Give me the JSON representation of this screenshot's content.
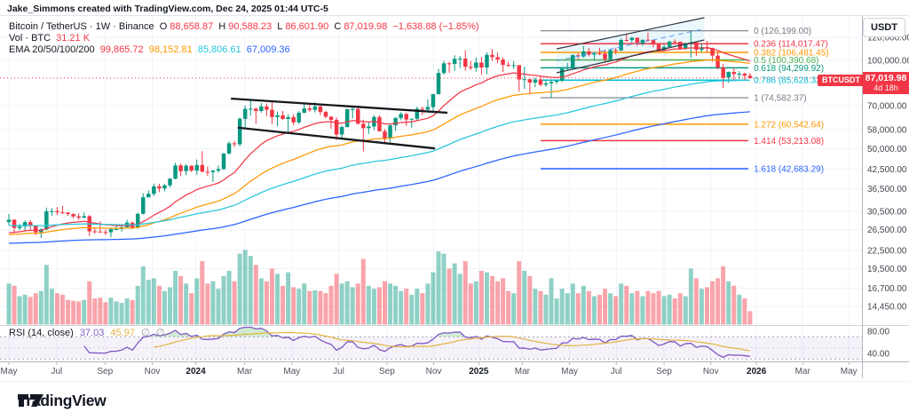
{
  "watermark": "Jake_Simmons created with TradingView.com, Dec 24, 2025 01:44 UTC-5",
  "colors": {
    "up": "#089981",
    "down": "#f23645",
    "ema": [
      "#f23645",
      "#ff9800",
      "#26c6da",
      "#2962ff"
    ],
    "rsi": "#7e57c2",
    "rsi_ma": "#e3b341",
    "grid": "#f0f3fa",
    "axis_text": "#42464e"
  },
  "legend": {
    "title": "Bitcoin / TetherUS · 1W · Binance",
    "ohlc": {
      "o_label": "O",
      "o": "88,658.87",
      "h_label": "H",
      "h": "90,588.23",
      "l_label": "L",
      "l": "86,601.90",
      "c_label": "C",
      "c": "87,019.98",
      "change": "−1,638.88 (−1.85%)"
    },
    "vol_label": "Vol · BTC",
    "vol_value": "31.21 K",
    "ema_label": "EMA 20/50/100/200",
    "ema_values": [
      "99,865.72",
      "98,152.81",
      "85,806.61",
      "67,009.36"
    ]
  },
  "rsi_pane": {
    "label": "RSI (14, close)",
    "value": "37.03",
    "ma_value": "45.97",
    "empty_icon": "∅",
    "levels": [
      70,
      50,
      30
    ]
  },
  "price_badge": {
    "symbol": "BTCUSDT",
    "price": "87,019.98",
    "countdown": "4d 18h",
    "value": 87019.98,
    "color": "#f23645"
  },
  "price_axis": {
    "currency": "USDT",
    "ticks": [
      {
        "label": "120,000.00",
        "price": 120000
      },
      {
        "label": "100,000.00",
        "price": 100000
      },
      {
        "label": "70,000.00",
        "price": 70000
      },
      {
        "label": "58,000.00",
        "price": 58000
      },
      {
        "label": "50,000.00",
        "price": 50000
      },
      {
        "label": "42,500.00",
        "price": 42500
      },
      {
        "label": "36,500.00",
        "price": 36500
      },
      {
        "label": "30,500.00",
        "price": 30500
      },
      {
        "label": "26,500.00",
        "price": 26500
      },
      {
        "label": "22,500.00",
        "price": 22500
      },
      {
        "label": "19,500.00",
        "price": 19500
      },
      {
        "label": "16,700.00",
        "price": 16700
      },
      {
        "label": "14,450.00",
        "price": 14450
      }
    ]
  },
  "rsi_axis": {
    "ticks": [
      {
        "label": "80.00",
        "value": 80
      },
      {
        "label": "40.00",
        "value": 40
      }
    ]
  },
  "time_axis": {
    "ticks": [
      {
        "label": "May",
        "week": 0
      },
      {
        "label": "Jul",
        "week": 8.9
      },
      {
        "label": "Sep",
        "week": 17.9
      },
      {
        "label": "Nov",
        "week": 26.7
      },
      {
        "label": "2024",
        "week": 34.8,
        "year": true
      },
      {
        "label": "Mar",
        "week": 43.9
      },
      {
        "label": "May",
        "week": 52.7
      },
      {
        "label": "Jul",
        "week": 61.4
      },
      {
        "label": "Sep",
        "week": 70.4
      },
      {
        "label": "Nov",
        "week": 79.1
      },
      {
        "label": "2025",
        "week": 87.5,
        "year": true
      },
      {
        "label": "Mar",
        "week": 95.6
      },
      {
        "label": "May",
        "week": 104.4
      },
      {
        "label": "Jul",
        "week": 113.1
      },
      {
        "label": "Sep",
        "week": 122
      },
      {
        "label": "Nov",
        "week": 130.7
      },
      {
        "label": "2026",
        "week": 139.2,
        "year": true
      },
      {
        "label": "Mar",
        "week": 147.8
      },
      {
        "label": "May",
        "week": 156.4
      }
    ]
  },
  "fib_retracement": {
    "week_start": 99,
    "week_end": 137.7,
    "levels": [
      {
        "level": "0",
        "price": 126199.0,
        "label": "0 (126,199.00)",
        "color": "#787b86"
      },
      {
        "level": "0.236",
        "price": 114017.47,
        "label": "0.236 (114,017.47)",
        "color": "#f23645"
      },
      {
        "level": "0.382",
        "price": 106481.45,
        "label": "0.382 (106,481.45)",
        "color": "#ff9800"
      },
      {
        "level": "0.5",
        "price": 100390.68,
        "label": "0.5 (100,390.68)",
        "color": "#4caf50"
      },
      {
        "level": "0.618",
        "price": 94299.92,
        "label": "0.618 (94,299.92)",
        "color": "#089981"
      },
      {
        "level": "0.786",
        "price": 85628.33,
        "label": "0.786 (85,628.33)",
        "color": "#00bcd4"
      },
      {
        "level": "1",
        "price": 74582.37,
        "label": "1 (74,582.37)",
        "color": "#787b86"
      },
      {
        "level": "1.272",
        "price": 60542.64,
        "label": "1.272 (60,542.64)",
        "color": "#ff9800"
      },
      {
        "level": "1.414",
        "price": 53213.08,
        "label": "1.414 (53,213.08)",
        "color": "#f23645"
      },
      {
        "level": "1.618",
        "price": 42683.29,
        "label": "1.618 (42,683.29)",
        "color": "#2962ff"
      }
    ]
  },
  "drawings": {
    "rising_channel": {
      "week1": 102,
      "week2": 129.5,
      "upper": [
        109500,
        139900
      ],
      "lower": [
        90700,
        117400
      ],
      "fill": "rgba(0,160,220,0.08)",
      "line_color": "#2e3440",
      "mid_color": "#5b9cf6"
    },
    "falling_channel": {
      "upper": {
        "w1": 41.5,
        "p1": 74000,
        "w2": 81.5,
        "p2": 66300
      },
      "lower": {
        "w1": 42.8,
        "p1": 58900,
        "w2": 79.2,
        "p2": 50100
      },
      "color": "#16181d"
    }
  },
  "chart_data": {
    "type": "candlestick",
    "symbol": "Bitcoin / TetherUS",
    "ticker": "BTCUSDT",
    "exchange": "Binance",
    "interval": "1W",
    "scale": "log",
    "currency": "USDT",
    "start_label": "May 2023",
    "end_label": "Dec 2025",
    "ylim": [
      13500,
      145000
    ],
    "legend_current": {
      "open": 88658.87,
      "high": 90588.23,
      "low": 86601.9,
      "close": 87019.98,
      "change": -1638.88,
      "change_pct": -1.85,
      "volume_btc": "31.21 K"
    },
    "ema_periods": [
      20,
      50,
      100,
      200
    ],
    "ema_current": [
      99865.72,
      98152.81,
      85806.61,
      67009.36
    ],
    "ema_seeds": [
      25500,
      25300,
      27300,
      23700
    ],
    "rsi": {
      "period": 14,
      "value": 37.03,
      "ma": 45.97
    },
    "candles": [
      [
        28050,
        29900,
        27350,
        28600,
        55
      ],
      [
        28600,
        28700,
        25750,
        26800,
        52
      ],
      [
        26800,
        27650,
        26300,
        27100,
        38
      ],
      [
        27100,
        28450,
        26050,
        28050,
        40
      ],
      [
        28050,
        28500,
        26480,
        27250,
        37
      ],
      [
        27250,
        27420,
        25300,
        25900,
        42
      ],
      [
        25900,
        26800,
        24750,
        26500,
        45
      ],
      [
        26500,
        31450,
        26250,
        30550,
        80
      ],
      [
        30550,
        31350,
        29450,
        30600,
        48
      ],
      [
        30600,
        31550,
        29650,
        30300,
        42
      ],
      [
        30300,
        31850,
        29950,
        30250,
        40
      ],
      [
        30250,
        30350,
        29500,
        29900,
        33
      ],
      [
        29900,
        30100,
        28850,
        29350,
        32
      ],
      [
        29350,
        30050,
        28550,
        29050,
        31
      ],
      [
        29050,
        30250,
        28900,
        29400,
        33
      ],
      [
        29400,
        29650,
        25150,
        26100,
        58
      ],
      [
        26100,
        26850,
        25650,
        26050,
        35
      ],
      [
        26050,
        28200,
        25850,
        25950,
        36
      ],
      [
        25950,
        26450,
        25350,
        25900,
        30
      ],
      [
        25900,
        26880,
        24880,
        26550,
        36
      ],
      [
        26550,
        27480,
        26250,
        26580,
        31
      ],
      [
        26580,
        27350,
        26050,
        26950,
        29
      ],
      [
        26950,
        28620,
        26900,
        27950,
        35
      ],
      [
        27950,
        28150,
        26530,
        26850,
        33
      ],
      [
        26850,
        30230,
        26650,
        29950,
        52
      ],
      [
        29950,
        35180,
        29780,
        34100,
        78
      ],
      [
        34100,
        35980,
        34020,
        35050,
        60
      ],
      [
        35050,
        37980,
        34420,
        37150,
        62
      ],
      [
        37150,
        37920,
        35520,
        36550,
        52
      ],
      [
        36550,
        37880,
        35720,
        37450,
        45
      ],
      [
        37450,
        39720,
        36850,
        39450,
        50
      ],
      [
        39450,
        44720,
        39280,
        43800,
        72
      ],
      [
        43800,
        44420,
        40250,
        41900,
        65
      ],
      [
        41900,
        44280,
        40520,
        43700,
        55
      ],
      [
        43700,
        43820,
        41580,
        42050,
        42
      ],
      [
        42050,
        45920,
        40730,
        43950,
        62
      ],
      [
        43950,
        48980,
        41480,
        41700,
        85
      ],
      [
        41700,
        43420,
        40260,
        41550,
        55
      ],
      [
        41550,
        42280,
        38480,
        42030,
        58
      ],
      [
        42030,
        43800,
        41400,
        42580,
        48
      ],
      [
        42580,
        48220,
        42250,
        48120,
        65
      ],
      [
        48120,
        52900,
        47690,
        52120,
        72
      ],
      [
        52120,
        52990,
        50610,
        51730,
        58
      ],
      [
        51730,
        64020,
        50910,
        63170,
        95
      ],
      [
        63170,
        70200,
        59040,
        68330,
        100
      ],
      [
        68330,
        73830,
        64760,
        68390,
        92
      ],
      [
        68390,
        69010,
        60750,
        67210,
        80
      ],
      [
        67210,
        71580,
        66360,
        69640,
        62
      ],
      [
        69640,
        71300,
        64520,
        67840,
        58
      ],
      [
        67840,
        72820,
        60640,
        64050,
        75
      ],
      [
        64050,
        66900,
        59580,
        64940,
        68
      ],
      [
        64940,
        67250,
        62760,
        63110,
        52
      ],
      [
        63110,
        65520,
        56480,
        64030,
        70
      ],
      [
        64030,
        65520,
        60150,
        61450,
        50
      ],
      [
        61450,
        67100,
        60770,
        66270,
        48
      ],
      [
        66270,
        72000,
        66040,
        68530,
        55
      ],
      [
        68530,
        70690,
        66650,
        67760,
        45
      ],
      [
        67760,
        71970,
        66430,
        69640,
        46
      ],
      [
        69640,
        70010,
        65030,
        66680,
        45
      ],
      [
        66680,
        67320,
        63360,
        64260,
        42
      ],
      [
        64260,
        64540,
        58380,
        62680,
        52
      ],
      [
        62680,
        63860,
        53480,
        55850,
        68
      ],
      [
        55850,
        59870,
        54240,
        59230,
        55
      ],
      [
        59230,
        68390,
        58980,
        68150,
        58
      ],
      [
        68150,
        69420,
        63440,
        68250,
        50
      ],
      [
        68250,
        70100,
        60380,
        60780,
        55
      ],
      [
        60780,
        62770,
        48900,
        58710,
        88
      ],
      [
        58710,
        61870,
        56080,
        59490,
        52
      ],
      [
        59490,
        64970,
        57820,
        64090,
        48
      ],
      [
        64090,
        65020,
        57100,
        57300,
        50
      ],
      [
        57300,
        58340,
        52510,
        54160,
        58
      ],
      [
        54160,
        60640,
        52570,
        60000,
        55
      ],
      [
        60000,
        64120,
        57470,
        63580,
        52
      ],
      [
        63580,
        66500,
        62530,
        65600,
        45
      ],
      [
        65600,
        66310,
        59810,
        62820,
        48
      ],
      [
        62820,
        63400,
        58920,
        63190,
        40
      ],
      [
        63190,
        69420,
        62430,
        68370,
        48
      ],
      [
        68370,
        69520,
        65050,
        67900,
        42
      ],
      [
        67900,
        73640,
        66780,
        69290,
        55
      ],
      [
        69290,
        76970,
        66810,
        76680,
        70
      ],
      [
        76680,
        93470,
        76490,
        90580,
        98
      ],
      [
        90580,
        99680,
        89350,
        97700,
        95
      ],
      [
        97700,
        98970,
        90750,
        97280,
        75
      ],
      [
        97280,
        104110,
        92070,
        101240,
        82
      ],
      [
        101240,
        103680,
        94130,
        101420,
        68
      ],
      [
        101420,
        108280,
        92210,
        95100,
        85
      ],
      [
        95100,
        99520,
        92780,
        94300,
        55
      ],
      [
        94300,
        102320,
        91510,
        98300,
        58
      ],
      [
        98300,
        102740,
        89240,
        94570,
        72
      ],
      [
        94570,
        106490,
        89740,
        104460,
        70
      ],
      [
        104460,
        109380,
        99520,
        102620,
        65
      ],
      [
        102620,
        106300,
        97750,
        100640,
        58
      ],
      [
        100640,
        102520,
        91210,
        96560,
        62
      ],
      [
        96560,
        98900,
        94860,
        96120,
        45
      ],
      [
        96120,
        99490,
        93370,
        96280,
        42
      ],
      [
        96280,
        96520,
        78240,
        86050,
        85
      ],
      [
        86050,
        95020,
        79980,
        86220,
        72
      ],
      [
        86220,
        86490,
        76590,
        84020,
        65
      ],
      [
        84020,
        87490,
        81110,
        86090,
        48
      ],
      [
        86090,
        88790,
        81540,
        82600,
        45
      ],
      [
        82600,
        85580,
        81200,
        83500,
        40
      ],
      [
        83500,
        86120,
        74490,
        84480,
        62
      ],
      [
        84480,
        85810,
        83010,
        85170,
        35
      ],
      [
        85170,
        94740,
        84300,
        93750,
        48
      ],
      [
        93750,
        97920,
        92820,
        94320,
        42
      ],
      [
        94320,
        105000,
        93330,
        104110,
        55
      ],
      [
        104110,
        105740,
        100730,
        103120,
        42
      ],
      [
        103120,
        112000,
        102080,
        107310,
        52
      ],
      [
        107310,
        110310,
        103090,
        104640,
        45
      ],
      [
        104640,
        106810,
        100400,
        105690,
        38
      ],
      [
        105690,
        110390,
        104200,
        105470,
        40
      ],
      [
        105470,
        108970,
        98180,
        100990,
        48
      ],
      [
        100990,
        108820,
        98950,
        108390,
        42
      ],
      [
        108390,
        110550,
        105080,
        108210,
        38
      ],
      [
        108210,
        118860,
        107480,
        117420,
        55
      ],
      [
        117420,
        123110,
        115680,
        117250,
        52
      ],
      [
        117250,
        120270,
        114480,
        119400,
        42
      ],
      [
        119400,
        119820,
        111940,
        114170,
        45
      ],
      [
        114170,
        117560,
        112080,
        117600,
        38
      ],
      [
        117600,
        124480,
        117230,
        117370,
        45
      ],
      [
        117370,
        117920,
        110680,
        113440,
        42
      ],
      [
        113440,
        113620,
        107250,
        108230,
        45
      ],
      [
        108230,
        113320,
        107280,
        111170,
        38
      ],
      [
        111170,
        116770,
        110730,
        115950,
        40
      ],
      [
        115950,
        117970,
        114480,
        115680,
        35
      ],
      [
        115680,
        116120,
        108640,
        109620,
        42
      ],
      [
        109620,
        114820,
        108780,
        114100,
        38
      ],
      [
        114100,
        126199,
        102020,
        115000,
        75
      ],
      [
        115000,
        116110,
        103510,
        108650,
        62
      ],
      [
        108650,
        114520,
        106580,
        111000,
        48
      ],
      [
        111000,
        116520,
        106280,
        110100,
        50
      ],
      [
        110100,
        110620,
        98930,
        103800,
        58
      ],
      [
        103800,
        107220,
        92980,
        94560,
        62
      ],
      [
        94560,
        97420,
        80530,
        87300,
        78
      ],
      [
        87300,
        91720,
        83880,
        91300,
        58
      ],
      [
        91300,
        94220,
        85080,
        89800,
        52
      ],
      [
        89800,
        91920,
        86380,
        90100,
        40
      ],
      [
        90100,
        90820,
        85280,
        88659,
        35
      ],
      [
        88658.87,
        90588.23,
        86601.9,
        87019.98,
        18
      ]
    ]
  },
  "logo": {
    "text": "TradingView"
  }
}
